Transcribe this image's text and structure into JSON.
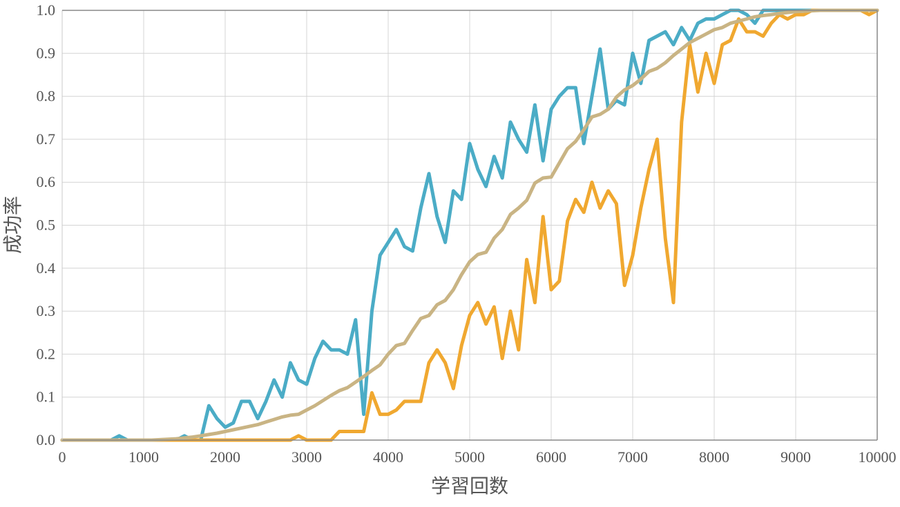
{
  "chart_data": {
    "type": "line",
    "xlabel": "学習回数",
    "ylabel": "成功率",
    "xlim": [
      0,
      10000
    ],
    "ylim": [
      0,
      1
    ],
    "x_ticks": [
      "0",
      "1000",
      "2000",
      "3000",
      "4000",
      "5000",
      "6000",
      "7000",
      "8000",
      "9000",
      "10000"
    ],
    "y_ticks": [
      "0.0",
      "0.1",
      "0.2",
      "0.3",
      "0.4",
      "0.5",
      "0.6",
      "0.7",
      "0.8",
      "0.9",
      "1.0"
    ],
    "grid": true,
    "legend": "none",
    "x": [
      0,
      100,
      200,
      300,
      400,
      500,
      600,
      700,
      800,
      900,
      1000,
      1100,
      1200,
      1300,
      1400,
      1500,
      1600,
      1700,
      1800,
      1900,
      2000,
      2100,
      2200,
      2300,
      2400,
      2500,
      2600,
      2700,
      2800,
      2900,
      3000,
      3100,
      3200,
      3300,
      3400,
      3500,
      3600,
      3700,
      3800,
      3900,
      4000,
      4100,
      4200,
      4300,
      4400,
      4500,
      4600,
      4700,
      4800,
      4900,
      5000,
      5100,
      5200,
      5300,
      5400,
      5500,
      5600,
      5700,
      5800,
      5900,
      6000,
      6100,
      6200,
      6300,
      6400,
      6500,
      6600,
      6700,
      6800,
      6900,
      7000,
      7100,
      7200,
      7300,
      7400,
      7500,
      7600,
      7700,
      7800,
      7900,
      8000,
      8100,
      8200,
      8300,
      8400,
      8500,
      8600,
      8700,
      8800,
      8900,
      9000,
      9100,
      9200,
      9300,
      9400,
      9500,
      9600,
      9700,
      9800,
      9900,
      10000
    ],
    "series": [
      {
        "color": "#4bacc6",
        "values": [
          0,
          0,
          0,
          0,
          0,
          0,
          0,
          0.01,
          0,
          0,
          0,
          0,
          0,
          0,
          0,
          0.01,
          0,
          0,
          0.08,
          0.05,
          0.03,
          0.04,
          0.09,
          0.09,
          0.05,
          0.09,
          0.14,
          0.1,
          0.18,
          0.14,
          0.13,
          0.19,
          0.23,
          0.21,
          0.21,
          0.2,
          0.28,
          0.06,
          0.3,
          0.43,
          0.46,
          0.49,
          0.45,
          0.44,
          0.54,
          0.62,
          0.52,
          0.46,
          0.58,
          0.56,
          0.69,
          0.63,
          0.59,
          0.66,
          0.61,
          0.74,
          0.7,
          0.67,
          0.78,
          0.65,
          0.77,
          0.8,
          0.82,
          0.82,
          0.69,
          0.8,
          0.91,
          0.77,
          0.79,
          0.78,
          0.9,
          0.83,
          0.93,
          0.94,
          0.95,
          0.92,
          0.96,
          0.93,
          0.97,
          0.98,
          0.98,
          0.99,
          1,
          1,
          0.99,
          0.97,
          1,
          1,
          1,
          1,
          1,
          1,
          1,
          1,
          1,
          1,
          1,
          1,
          1,
          1,
          1
        ]
      },
      {
        "color": "#f0a830",
        "values": [
          0,
          0,
          0,
          0,
          0,
          0,
          0,
          0,
          0,
          0,
          0,
          0,
          0,
          0,
          0,
          0,
          0,
          0,
          0,
          0,
          0,
          0,
          0,
          0,
          0,
          0,
          0,
          0,
          0,
          0.01,
          0,
          0,
          0,
          0,
          0.02,
          0.02,
          0.02,
          0.02,
          0.11,
          0.06,
          0.06,
          0.07,
          0.09,
          0.09,
          0.09,
          0.18,
          0.21,
          0.18,
          0.12,
          0.22,
          0.29,
          0.32,
          0.27,
          0.31,
          0.19,
          0.3,
          0.21,
          0.42,
          0.32,
          0.52,
          0.35,
          0.37,
          0.51,
          0.56,
          0.53,
          0.6,
          0.54,
          0.58,
          0.55,
          0.36,
          0.43,
          0.54,
          0.63,
          0.7,
          0.47,
          0.32,
          0.74,
          0.92,
          0.81,
          0.9,
          0.83,
          0.92,
          0.93,
          0.98,
          0.95,
          0.95,
          0.94,
          0.97,
          0.99,
          0.98,
          0.99,
          0.99,
          1,
          1,
          1,
          1,
          1,
          1,
          1,
          0.99,
          1
        ]
      },
      {
        "color": "#c9b484",
        "values": [
          0,
          0,
          0,
          0,
          0,
          0,
          0,
          0,
          0,
          0,
          0,
          0,
          0.001,
          0.002,
          0.003,
          0.005,
          0.007,
          0.01,
          0.013,
          0.016,
          0.02,
          0.024,
          0.028,
          0.032,
          0.036,
          0.042,
          0.048,
          0.054,
          0.058,
          0.06,
          0.07,
          0.08,
          0.092,
          0.104,
          0.115,
          0.122,
          0.135,
          0.148,
          0.162,
          0.175,
          0.2,
          0.22,
          0.225,
          0.255,
          0.283,
          0.29,
          0.315,
          0.325,
          0.35,
          0.385,
          0.415,
          0.432,
          0.437,
          0.47,
          0.49,
          0.525,
          0.54,
          0.558,
          0.598,
          0.61,
          0.612,
          0.645,
          0.678,
          0.695,
          0.722,
          0.752,
          0.758,
          0.77,
          0.798,
          0.815,
          0.825,
          0.84,
          0.858,
          0.865,
          0.878,
          0.895,
          0.91,
          0.925,
          0.935,
          0.945,
          0.955,
          0.96,
          0.97,
          0.975,
          0.98,
          0.985,
          0.988,
          0.99,
          0.993,
          0.995,
          0.997,
          0.998,
          0.999,
          1,
          1,
          1,
          1,
          1,
          1,
          1,
          1
        ]
      }
    ]
  }
}
